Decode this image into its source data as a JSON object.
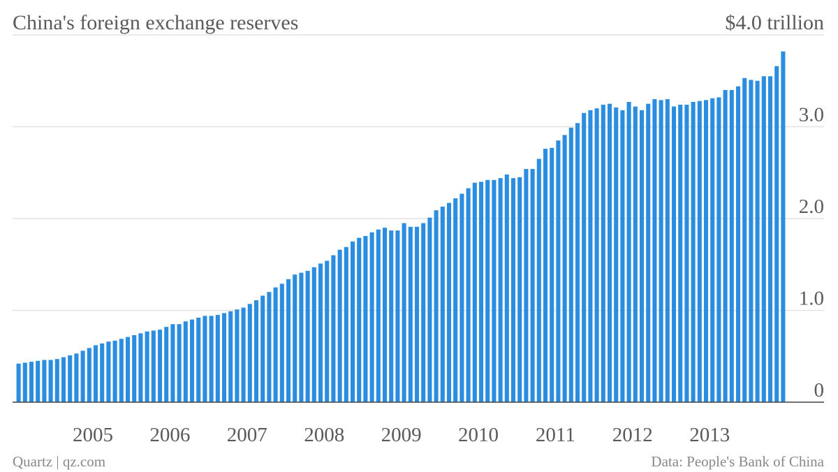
{
  "chart_data": {
    "type": "bar",
    "title": "China's foreign exchange reserves",
    "source": "Data: People's Bank of China",
    "credit": "Quartz | qz.com",
    "color": "#2a8de0",
    "grid": true,
    "categories": [
      null,
      null,
      null,
      null,
      null,
      null,
      null,
      null,
      null,
      null,
      null,
      null,
      "2005",
      null,
      null,
      null,
      null,
      null,
      null,
      null,
      null,
      null,
      null,
      null,
      "2006",
      null,
      null,
      null,
      null,
      null,
      null,
      null,
      null,
      null,
      null,
      null,
      "2007",
      null,
      null,
      null,
      null,
      null,
      null,
      null,
      null,
      null,
      null,
      null,
      "2008",
      null,
      null,
      null,
      null,
      null,
      null,
      null,
      null,
      null,
      null,
      null,
      "2009",
      null,
      null,
      null,
      null,
      null,
      null,
      null,
      null,
      null,
      null,
      null,
      "2010",
      null,
      null,
      null,
      null,
      null,
      null,
      null,
      null,
      null,
      null,
      null,
      "2011",
      null,
      null,
      null,
      null,
      null,
      null,
      null,
      null,
      null,
      null,
      null,
      "2012",
      null,
      null,
      null,
      null,
      null,
      null,
      null,
      null,
      null,
      null,
      null,
      "2013",
      null,
      null,
      null,
      null,
      null,
      null,
      null,
      null,
      null,
      null,
      null
    ],
    "values": [
      0.42,
      0.43,
      0.44,
      0.45,
      0.46,
      0.46,
      0.47,
      0.49,
      0.51,
      0.53,
      0.56,
      0.59,
      0.62,
      0.64,
      0.66,
      0.67,
      0.69,
      0.71,
      0.73,
      0.75,
      0.77,
      0.78,
      0.79,
      0.82,
      0.85,
      0.85,
      0.88,
      0.9,
      0.92,
      0.94,
      0.94,
      0.95,
      0.97,
      0.99,
      1.01,
      1.03,
      1.07,
      1.11,
      1.16,
      1.2,
      1.25,
      1.29,
      1.34,
      1.39,
      1.41,
      1.43,
      1.47,
      1.51,
      1.54,
      1.6,
      1.66,
      1.69,
      1.75,
      1.79,
      1.81,
      1.85,
      1.88,
      1.9,
      1.87,
      1.87,
      1.95,
      1.91,
      1.91,
      1.95,
      2.01,
      2.09,
      2.13,
      2.17,
      2.22,
      2.27,
      2.33,
      2.39,
      2.4,
      2.42,
      2.42,
      2.44,
      2.48,
      2.44,
      2.45,
      2.54,
      2.54,
      2.65,
      2.76,
      2.77,
      2.85,
      2.91,
      2.99,
      3.04,
      3.15,
      3.18,
      3.2,
      3.24,
      3.25,
      3.21,
      3.18,
      3.27,
      3.22,
      3.18,
      3.25,
      3.3,
      3.29,
      3.3,
      3.22,
      3.24,
      3.24,
      3.27,
      3.28,
      3.29,
      3.31,
      3.32,
      3.4,
      3.4,
      3.44,
      3.53,
      3.51,
      3.5,
      3.55,
      3.55,
      3.66,
      3.82
    ],
    "ylim": [
      0,
      4
    ],
    "yticks": [
      0,
      {
        "value": 1,
        "label": "1.0"
      },
      {
        "value": 2,
        "label": "2.0"
      },
      {
        "value": 3,
        "label": "3.0"
      },
      {
        "value": 4,
        "label": "$4.0 trillion"
      }
    ]
  }
}
